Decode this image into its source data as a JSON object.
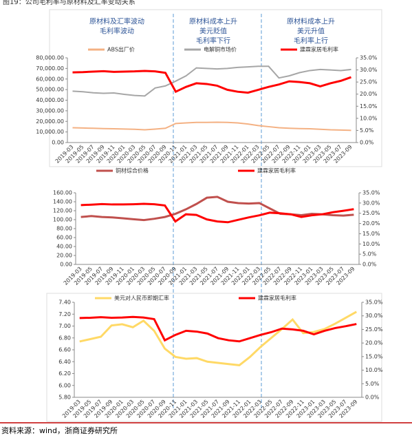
{
  "title": "图19：公司毛利率与原材料及汇率变动关系",
  "source": "资料来源：wind，浙商证券研究所",
  "chart_data": [
    {
      "type": "line",
      "annotations": [
        [
          "原材料及汇率波动",
          "毛利率波动"
        ],
        [
          "原材料成本上升",
          "美元贬值",
          "毛利率下行"
        ],
        [
          "原材料成本上升",
          "美元升值",
          "毛利率上行"
        ]
      ],
      "categories": [
        "2019-03",
        "2019-05",
        "2019-07",
        "2019-09",
        "2019-11",
        "2020-01",
        "2020-03",
        "2020-05",
        "2020-07",
        "2020-09",
        "2020-11",
        "2021-01",
        "2021-03",
        "2021-05",
        "2021-07",
        "2021-09",
        "2021-11",
        "2022-01",
        "2022-03",
        "2022-05",
        "2022-07",
        "2022-09",
        "2022-11",
        "2023-01",
        "2023-03",
        "2023-05",
        "2023-07",
        "2023-09"
      ],
      "series": [
        {
          "name": "ABS出厂价",
          "color": "#f4b183",
          "axis": "y",
          "values": [
            14000,
            13700,
            13500,
            13200,
            13000,
            12800,
            12500,
            12000,
            12700,
            13500,
            18000,
            18500,
            19000,
            19000,
            19200,
            19000,
            18500,
            17500,
            16000,
            15000,
            14000,
            13500,
            13200,
            13000,
            12500,
            12000,
            11800,
            11500
          ]
        },
        {
          "name": "电解铜市场价",
          "color": "#a6a6a6",
          "axis": "y",
          "values": [
            48500,
            48000,
            47000,
            46500,
            46800,
            45500,
            44500,
            44000,
            51500,
            53500,
            58000,
            63000,
            70500,
            70000,
            69500,
            70000,
            71000,
            71500,
            72000,
            72000,
            61000,
            63000,
            66000,
            68000,
            69000,
            68500,
            68000,
            69000
          ]
        },
        {
          "name": "建霖家居毛利率",
          "color": "#ff0000",
          "axis": "y2",
          "values": [
            29.0,
            29.1,
            29.3,
            29.5,
            29.2,
            29.3,
            29.4,
            29.6,
            29.4,
            28.8,
            21.0,
            23.0,
            24.5,
            24.2,
            23.5,
            21.8,
            21.0,
            20.6,
            21.8,
            23.0,
            24.0,
            25.3,
            25.0,
            24.5,
            23.2,
            24.5,
            25.5,
            27.0
          ]
        }
      ],
      "ylim": [
        0,
        80000
      ],
      "yticks": [
        {
          "value": 0,
          "label": "0.00"
        },
        {
          "value": 10000,
          "label": "10,000.00"
        },
        {
          "value": 20000,
          "label": "20,000.00"
        },
        {
          "value": 30000,
          "label": "30,000.00"
        },
        {
          "value": 40000,
          "label": "40,000.00"
        },
        {
          "value": 50000,
          "label": "50,000.00"
        },
        {
          "value": 60000,
          "label": "60,000.00"
        },
        {
          "value": 70000,
          "label": "70,000.00"
        },
        {
          "value": 80000,
          "label": "80,000.00"
        }
      ],
      "y2lim": [
        0,
        35
      ],
      "y2ticks": [
        {
          "value": 0,
          "label": "0.0%"
        },
        {
          "value": 5,
          "label": "5.0%"
        },
        {
          "value": 10,
          "label": "10.0%"
        },
        {
          "value": 15,
          "label": "15.0%"
        },
        {
          "value": 20,
          "label": "20.0%"
        },
        {
          "value": 25,
          "label": "25.0%"
        },
        {
          "value": 30,
          "label": "30.0%"
        },
        {
          "value": 35,
          "label": "35.0%"
        }
      ]
    },
    {
      "type": "line",
      "categories": [
        "2019-03",
        "2019-05",
        "2019-07",
        "2019-09",
        "2019-11",
        "2020-01",
        "2020-03",
        "2020-05",
        "2020-07",
        "2020-09",
        "2021-01",
        "2021-03",
        "2021-05",
        "2021-07",
        "2021-09",
        "2021-11",
        "2022-01",
        "2022-03",
        "2022-05",
        "2022-07",
        "2022-09",
        "2022-11",
        "2023-01",
        "2023-03",
        "2023-05",
        "2023-07",
        "2023-09"
      ],
      "series": [
        {
          "name": "铜材综合价格",
          "color": "#c0504d",
          "axis": "y",
          "values": [
            106,
            108,
            106,
            105,
            103,
            101,
            99,
            102,
            106,
            113,
            123,
            135,
            149,
            151,
            140,
            137,
            136,
            137,
            125,
            113,
            112,
            110,
            113,
            112,
            110,
            109,
            111
          ]
        },
        {
          "name": "建霖家居毛利率",
          "color": "#ff0000",
          "axis": "y2",
          "values": [
            29.0,
            29.2,
            29.5,
            29.3,
            29.3,
            29.4,
            29.6,
            29.4,
            28.8,
            21.0,
            24.5,
            24.2,
            22.0,
            21.0,
            20.6,
            21.8,
            23.0,
            24.0,
            25.3,
            25.0,
            24.5,
            23.2,
            24.0,
            24.5,
            25.5,
            26.2,
            27.0
          ]
        }
      ],
      "ylim": [
        0,
        160
      ],
      "yticks": [
        {
          "value": 0,
          "label": "0.00"
        },
        {
          "value": 20,
          "label": "20.00"
        },
        {
          "value": 40,
          "label": "40.00"
        },
        {
          "value": 60,
          "label": "60.00"
        },
        {
          "value": 80,
          "label": "80.00"
        },
        {
          "value": 100,
          "label": "100.00"
        },
        {
          "value": 120,
          "label": "120.00"
        },
        {
          "value": 140,
          "label": "140.00"
        },
        {
          "value": 160,
          "label": "160.00"
        }
      ],
      "y2lim": [
        0,
        35
      ],
      "y2ticks": [
        {
          "value": 0,
          "label": "0.0%"
        },
        {
          "value": 5,
          "label": "5.0%"
        },
        {
          "value": 10,
          "label": "10.0%"
        },
        {
          "value": 15,
          "label": "15.0%"
        },
        {
          "value": 20,
          "label": "20.0%"
        },
        {
          "value": 25,
          "label": "25.0%"
        },
        {
          "value": 30,
          "label": "30.0%"
        },
        {
          "value": 35,
          "label": "35.0%"
        }
      ]
    },
    {
      "type": "line",
      "categories": [
        "2019-03",
        "2019-05",
        "2019-07",
        "2019-09",
        "2020-01",
        "2020-03",
        "2020-05",
        "2020-07",
        "2020-09",
        "2020-11",
        "2021-01",
        "2021-03",
        "2021-05",
        "2021-07",
        "2021-09",
        "2021-11",
        "2022-01",
        "2022-03",
        "2022-05",
        "2022-07",
        "2022-09",
        "2022-11",
        "2023-01",
        "2023-03",
        "2023-05",
        "2023-07",
        "2023-09"
      ],
      "series": [
        {
          "name": "美元对人民币即期汇率",
          "color": "#ffd966",
          "axis": "y",
          "values": [
            6.74,
            6.78,
            6.82,
            7.01,
            7.03,
            6.98,
            7.09,
            6.92,
            6.62,
            6.48,
            6.45,
            6.46,
            6.4,
            6.38,
            6.36,
            6.34,
            6.48,
            6.65,
            6.8,
            6.95,
            7.11,
            6.88,
            6.9,
            6.95,
            7.04,
            7.14,
            7.24
          ]
        },
        {
          "name": "建霖家居毛利率",
          "color": "#ff0000",
          "axis": "y2",
          "values": [
            29.2,
            29.3,
            29.5,
            29.3,
            29.4,
            29.6,
            29.4,
            28.8,
            21.0,
            23.0,
            24.5,
            24.2,
            23.5,
            21.8,
            21.0,
            20.6,
            21.8,
            23.0,
            24.0,
            25.3,
            25.0,
            24.5,
            23.2,
            24.5,
            25.5,
            26.2,
            27.0
          ]
        }
      ],
      "ylim": [
        5.8,
        7.4
      ],
      "yticks": [
        {
          "value": 5.8,
          "label": "5.80"
        },
        {
          "value": 6.0,
          "label": "6.00"
        },
        {
          "value": 6.2,
          "label": "6.20"
        },
        {
          "value": 6.4,
          "label": "6.40"
        },
        {
          "value": 6.6,
          "label": "6.60"
        },
        {
          "value": 6.8,
          "label": "6.80"
        },
        {
          "value": 7.0,
          "label": "7.00"
        },
        {
          "value": 7.2,
          "label": "7.20"
        },
        {
          "value": 7.4,
          "label": "7.40"
        }
      ],
      "y2lim": [
        0,
        35
      ],
      "y2ticks": [
        {
          "value": 0,
          "label": "0.0%"
        },
        {
          "value": 5,
          "label": "5.0%"
        },
        {
          "value": 10,
          "label": "10.0%"
        },
        {
          "value": 15,
          "label": "15.0%"
        },
        {
          "value": 20,
          "label": "20.0%"
        },
        {
          "value": 25,
          "label": "25.0%"
        },
        {
          "value": 30,
          "label": "30.0%"
        },
        {
          "value": 35,
          "label": "35.0%"
        }
      ]
    }
  ]
}
